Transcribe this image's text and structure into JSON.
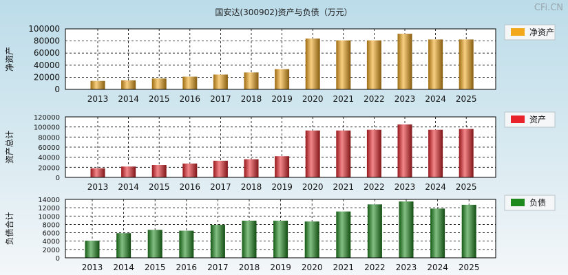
{
  "title": "国安达(300902)资产与负债（万元）",
  "watermark": "CFi.CN",
  "chart_data": [
    {
      "type": "bar",
      "ylabel": "净资产",
      "legend": "净资产",
      "legend_position": "top-right",
      "color": "#f3a81c",
      "grid": true,
      "categories": [
        "2013",
        "2014",
        "2015",
        "2016",
        "2017",
        "2018",
        "2019",
        "2020",
        "2021",
        "2022",
        "2023",
        "2024",
        "2025"
      ],
      "values": [
        14000,
        15000,
        18000,
        21000,
        24500,
        28000,
        33500,
        84000,
        81000,
        81000,
        92000,
        82500,
        82500
      ],
      "ylim": [
        0,
        100000
      ],
      "yticks": [
        0,
        20000,
        40000,
        60000,
        80000,
        100000
      ]
    },
    {
      "type": "bar",
      "ylabel": "资产总计",
      "legend": "资产",
      "legend_position": "top-right",
      "color": "#e8242a",
      "grid": true,
      "categories": [
        "2013",
        "2014",
        "2015",
        "2016",
        "2017",
        "2018",
        "2019",
        "2020",
        "2021",
        "2022",
        "2023",
        "2024",
        "2025"
      ],
      "values": [
        18000,
        21500,
        24500,
        27500,
        33000,
        36000,
        42000,
        93000,
        93000,
        94500,
        105000,
        94500,
        96000
      ],
      "ylim": [
        0,
        120000
      ],
      "yticks": [
        0,
        20000,
        40000,
        60000,
        80000,
        100000,
        120000
      ]
    },
    {
      "type": "bar",
      "ylabel": "负债合计",
      "legend": "负债",
      "legend_position": "top-right",
      "color": "#1e8a1e",
      "grid": true,
      "categories": [
        "2013",
        "2014",
        "2015",
        "2016",
        "2017",
        "2018",
        "2019",
        "2020",
        "2021",
        "2022",
        "2023",
        "2024",
        "2025"
      ],
      "values": [
        4100,
        5900,
        6700,
        6500,
        7900,
        8900,
        8900,
        8700,
        11100,
        12800,
        13500,
        11800,
        12700
      ],
      "ylim": [
        0,
        14000
      ],
      "yticks": [
        0,
        2000,
        4000,
        6000,
        8000,
        10000,
        12000,
        14000
      ]
    }
  ]
}
